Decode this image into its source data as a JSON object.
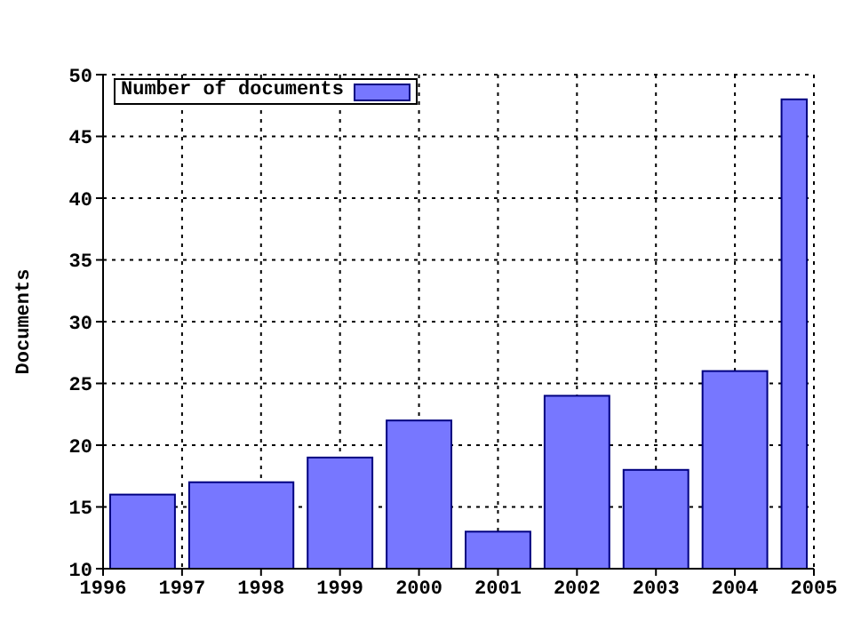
{
  "chart_data": {
    "type": "histogram",
    "ylabel": "Documents",
    "bins": [
      1996,
      1997,
      1998.5,
      1999.5,
      2000.5,
      2001.5,
      2002.5,
      2003.5,
      2004.5,
      2005
    ],
    "series": [
      {
        "name": "Number of documents",
        "color": "#7777ff",
        "values": [
          16,
          17,
          19,
          22,
          13,
          24,
          18,
          26,
          48
        ]
      }
    ],
    "xlim": [
      1996,
      2005
    ],
    "xticks": [
      1996,
      1997,
      1998,
      1999,
      2000,
      2001,
      2002,
      2003,
      2004,
      2005
    ],
    "ylim": [
      10,
      50
    ],
    "yticks": [
      10,
      15,
      20,
      25,
      30,
      35,
      40,
      45,
      50
    ],
    "grid": true,
    "legend": "top left"
  }
}
